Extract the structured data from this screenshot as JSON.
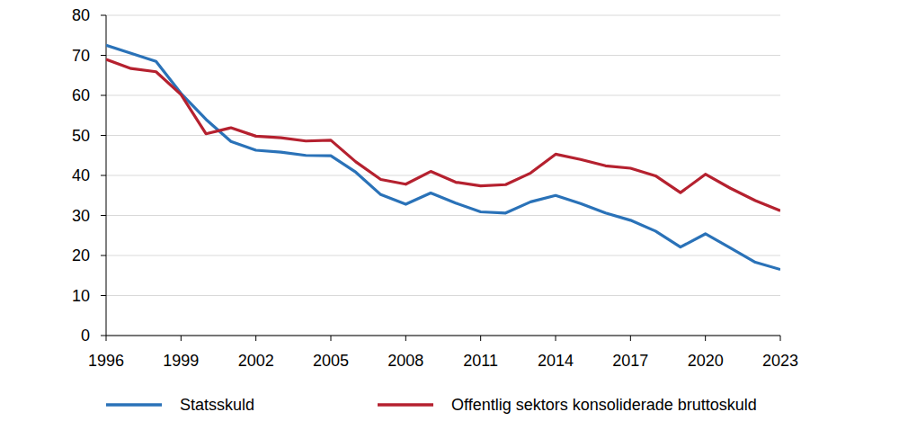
{
  "chart_data": {
    "type": "line",
    "x": [
      1996,
      1997,
      1998,
      1999,
      2000,
      2001,
      2002,
      2003,
      2004,
      2005,
      2006,
      2007,
      2008,
      2009,
      2010,
      2011,
      2012,
      2013,
      2014,
      2015,
      2016,
      2017,
      2018,
      2019,
      2020,
      2021,
      2022,
      2023
    ],
    "series": [
      {
        "name": "Statsskuld",
        "color": "#2a72b8",
        "values": [
          72.5,
          70.5,
          68.5,
          60.5,
          54,
          48.5,
          46.3,
          45.8,
          45,
          44.9,
          40.8,
          35.2,
          32.8,
          35.6,
          33.1,
          30.9,
          30.6,
          33.4,
          35,
          33,
          30.6,
          28.8,
          26.1,
          22.1,
          25.4,
          21.9,
          18.3,
          16.5
        ]
      },
      {
        "name": "Offentlig sektors konsoliderade bruttoskuld",
        "color": "#b5212f",
        "values": [
          69,
          66.7,
          65.9,
          60.2,
          50.4,
          51.9,
          49.8,
          49.4,
          48.6,
          48.8,
          43.4,
          39,
          37.8,
          41,
          38.3,
          37.4,
          37.7,
          40.6,
          45.3,
          44,
          42.4,
          41.8,
          39.9,
          35.7,
          40.3,
          36.8,
          33.7,
          31.2
        ]
      }
    ],
    "xlim": [
      1996,
      2023
    ],
    "xticks": [
      1996,
      1999,
      2002,
      2005,
      2008,
      2011,
      2014,
      2017,
      2020,
      2023
    ],
    "ylim": [
      0,
      80
    ],
    "yticks": [
      0,
      10,
      20,
      30,
      40,
      50,
      60,
      70,
      80
    ],
    "grid": true,
    "legend": "bottom"
  }
}
